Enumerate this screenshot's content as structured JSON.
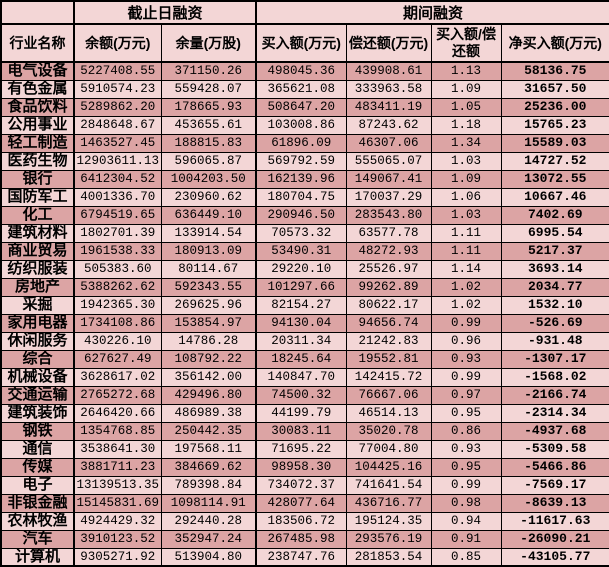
{
  "chart_data": {
    "type": "table",
    "group_headers": [
      {
        "label": "截止日融资"
      },
      {
        "label": "期间融资"
      }
    ],
    "columns": [
      "行业名称",
      "余额(万元)",
      "余量(万股)",
      "买入额(万元)",
      "偿还额(万元)",
      "买入额/偿还额",
      "净买入额(万元)"
    ],
    "rows": [
      [
        "电气设备",
        "5227408.55",
        "371150.26",
        "498045.36",
        "439908.61",
        "1.13",
        "58136.75"
      ],
      [
        "有色金属",
        "5910574.23",
        "559428.07",
        "365621.08",
        "333963.58",
        "1.09",
        "31657.50"
      ],
      [
        "食品饮料",
        "5289862.20",
        "178665.93",
        "508647.20",
        "483411.19",
        "1.05",
        "25236.00"
      ],
      [
        "公用事业",
        "2848648.67",
        "453655.61",
        "103008.86",
        "87243.62",
        "1.18",
        "15765.23"
      ],
      [
        "轻工制造",
        "1463527.45",
        "188815.83",
        "61896.09",
        "46307.06",
        "1.34",
        "15589.03"
      ],
      [
        "医药生物",
        "12903611.13",
        "596065.87",
        "569792.59",
        "555065.07",
        "1.03",
        "14727.52"
      ],
      [
        "银行",
        "6412304.52",
        "1004203.50",
        "162139.96",
        "149067.41",
        "1.09",
        "13072.55"
      ],
      [
        "国防军工",
        "4001336.70",
        "230960.62",
        "180704.75",
        "170037.29",
        "1.06",
        "10667.46"
      ],
      [
        "化工",
        "6794519.65",
        "636449.10",
        "290946.50",
        "283543.80",
        "1.03",
        "7402.69"
      ],
      [
        "建筑材料",
        "1802701.39",
        "133914.54",
        "70573.32",
        "63577.78",
        "1.11",
        "6995.54"
      ],
      [
        "商业贸易",
        "1961538.33",
        "180913.09",
        "53490.31",
        "48272.93",
        "1.11",
        "5217.37"
      ],
      [
        "纺织服装",
        "505383.60",
        "80114.67",
        "29220.10",
        "25526.97",
        "1.14",
        "3693.14"
      ],
      [
        "房地产",
        "5388262.62",
        "592343.55",
        "101297.66",
        "99262.89",
        "1.02",
        "2034.77"
      ],
      [
        "采掘",
        "1942365.30",
        "269625.96",
        "82154.27",
        "80622.17",
        "1.02",
        "1532.10"
      ],
      [
        "家用电器",
        "1734108.86",
        "153854.97",
        "94130.04",
        "94656.74",
        "0.99",
        "-526.69"
      ],
      [
        "休闲服务",
        "430226.10",
        "14786.28",
        "20311.34",
        "21242.83",
        "0.96",
        "-931.48"
      ],
      [
        "综合",
        "627627.49",
        "108792.22",
        "18245.64",
        "19552.81",
        "0.93",
        "-1307.17"
      ],
      [
        "机械设备",
        "3628617.02",
        "356142.00",
        "140847.70",
        "142415.72",
        "0.99",
        "-1568.02"
      ],
      [
        "交通运输",
        "2765272.68",
        "429496.80",
        "74500.32",
        "76667.06",
        "0.97",
        "-2166.74"
      ],
      [
        "建筑装饰",
        "2646420.66",
        "486989.38",
        "44199.79",
        "46514.13",
        "0.95",
        "-2314.34"
      ],
      [
        "钢铁",
        "1354768.85",
        "250442.35",
        "30083.11",
        "35020.78",
        "0.86",
        "-4937.68"
      ],
      [
        "通信",
        "3538641.30",
        "197568.11",
        "71695.22",
        "77004.80",
        "0.93",
        "-5309.58"
      ],
      [
        "传媒",
        "3881711.23",
        "384669.62",
        "98958.30",
        "104425.16",
        "0.95",
        "-5466.86"
      ],
      [
        "电子",
        "13139513.35",
        "789398.84",
        "734072.37",
        "741641.54",
        "0.99",
        "-7569.17"
      ],
      [
        "非银金融",
        "15145831.69",
        "1098114.91",
        "428077.64",
        "436716.77",
        "0.98",
        "-8639.13"
      ],
      [
        "农林牧渔",
        "4924429.32",
        "292440.28",
        "183506.72",
        "195124.35",
        "0.94",
        "-11617.63"
      ],
      [
        "汽车",
        "3910123.52",
        "352947.24",
        "267485.98",
        "293576.19",
        "0.91",
        "-26090.21"
      ],
      [
        "计算机",
        "9305271.92",
        "513904.80",
        "238747.76",
        "281853.54",
        "0.85",
        "-43105.77"
      ]
    ],
    "layout": {
      "grid": "on",
      "row_stripe_colors": [
        "#dca4a4",
        "#f3d6d6"
      ]
    }
  },
  "colors": {
    "row_dark": "#dca4a4",
    "row_light": "#f3d6d6",
    "header_bg": "#f3d6d6",
    "border": "#000000",
    "text": "#000000"
  }
}
